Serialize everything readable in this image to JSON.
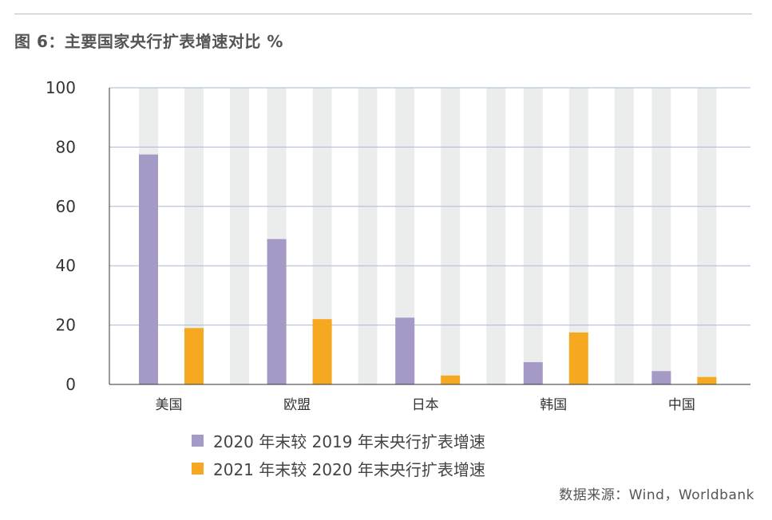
{
  "title": "图 6：主要国家央行扩表增速对比 %",
  "source": "数据来源：Wind，Worldbank",
  "colors": {
    "series1": "#a599c6",
    "series2": "#f5a820",
    "background_column": "#ebedec",
    "gridline": "#aab8d0",
    "axis": "#333333"
  },
  "chart_data": {
    "type": "bar",
    "categories": [
      "美国",
      "欧盟",
      "日本",
      "韩国",
      "中国"
    ],
    "series": [
      {
        "name": "2020 年末较 2019 年末央行扩表增速",
        "values": [
          77.5,
          49,
          22.5,
          7.5,
          4.5
        ]
      },
      {
        "name": "2021 年末较 2020 年末央行扩表增速",
        "values": [
          19,
          22,
          3,
          17.5,
          2.5
        ]
      }
    ],
    "ylim": [
      0,
      100
    ],
    "yticks": [
      0,
      20,
      40,
      60,
      80,
      100
    ],
    "grid": true,
    "legend": "bottom"
  }
}
